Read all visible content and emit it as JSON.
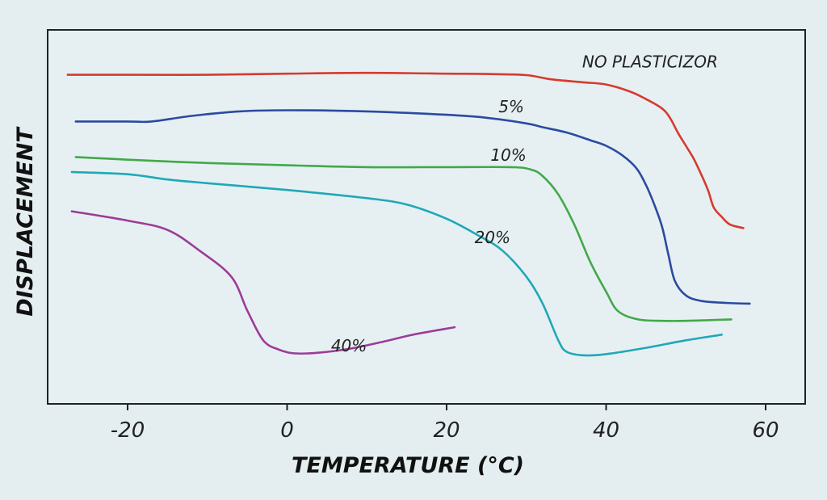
{
  "chart_data": {
    "type": "line",
    "title": "",
    "xlabel": "TEMPERATURE (°C)",
    "ylabel": "DISPLACEMENT",
    "xlim": [
      -30,
      65
    ],
    "ylim": [
      0,
      100
    ],
    "xticks": [
      -20,
      0,
      20,
      40,
      60
    ],
    "xtick_labels": [
      "-20",
      "0",
      "20",
      "40",
      "60"
    ],
    "grid": false,
    "series": [
      {
        "name": "NO PLASTICIZOR",
        "label": "NO PLASTICIZOR",
        "color": "#d63a2f",
        "label_at": [
          37,
          90
        ],
        "points": [
          [
            -27.5,
            88
          ],
          [
            -20,
            88
          ],
          [
            -10,
            88
          ],
          [
            0,
            88.3
          ],
          [
            10,
            88.5
          ],
          [
            20,
            88.3
          ],
          [
            25,
            88.2
          ],
          [
            30,
            87.9
          ],
          [
            33,
            86.8
          ],
          [
            37,
            86
          ],
          [
            40,
            85.4
          ],
          [
            43,
            83.5
          ],
          [
            45,
            81.5
          ],
          [
            47,
            79
          ],
          [
            48,
            76.5
          ],
          [
            49,
            72.5
          ],
          [
            50,
            69
          ],
          [
            51,
            65.5
          ],
          [
            52,
            61
          ],
          [
            52.8,
            57
          ],
          [
            53.5,
            52.5
          ],
          [
            54.5,
            50
          ],
          [
            55.5,
            48
          ],
          [
            57.2,
            47
          ]
        ]
      },
      {
        "name": "5%",
        "label": "5%",
        "color": "#2b4aa2",
        "label_at": [
          26.5,
          78
        ],
        "points": [
          [
            -26.5,
            75.5
          ],
          [
            -20,
            75.5
          ],
          [
            -17,
            75.5
          ],
          [
            -12,
            77
          ],
          [
            -6,
            78.2
          ],
          [
            0,
            78.5
          ],
          [
            10,
            78.2
          ],
          [
            20,
            77.3
          ],
          [
            25,
            76.5
          ],
          [
            30,
            75
          ],
          [
            32,
            74
          ],
          [
            35,
            72.6
          ],
          [
            38,
            70.5
          ],
          [
            40,
            69
          ],
          [
            42,
            66.5
          ],
          [
            43.8,
            63
          ],
          [
            45,
            58.5
          ],
          [
            46,
            53.5
          ],
          [
            47,
            47.5
          ],
          [
            47.8,
            40
          ],
          [
            48.6,
            33
          ],
          [
            50,
            29
          ],
          [
            52,
            27.5
          ],
          [
            55,
            27
          ],
          [
            58,
            26.8
          ]
        ]
      },
      {
        "name": "10%",
        "label": "10%",
        "color": "#43a84a",
        "label_at": [
          25.5,
          65
        ],
        "points": [
          [
            -26.5,
            66
          ],
          [
            -20,
            65.3
          ],
          [
            -10,
            64.4
          ],
          [
            0,
            63.8
          ],
          [
            10,
            63.3
          ],
          [
            20,
            63.3
          ],
          [
            28,
            63.3
          ],
          [
            30.5,
            62.7
          ],
          [
            32,
            61
          ],
          [
            34,
            56
          ],
          [
            36,
            48
          ],
          [
            38,
            38
          ],
          [
            40,
            30
          ],
          [
            41.5,
            24.8
          ],
          [
            44,
            22.6
          ],
          [
            47,
            22.2
          ],
          [
            50,
            22.2
          ],
          [
            53,
            22.4
          ],
          [
            55.7,
            22.6
          ]
        ]
      },
      {
        "name": "20%",
        "label": "20%",
        "color": "#1fa8b8",
        "label_at": [
          23.5,
          43
        ],
        "points": [
          [
            -27,
            62
          ],
          [
            -20,
            61.4
          ],
          [
            -15,
            60
          ],
          [
            -10,
            59
          ],
          [
            0,
            57.2
          ],
          [
            10,
            55
          ],
          [
            15,
            53.3
          ],
          [
            20,
            49.5
          ],
          [
            24,
            45
          ],
          [
            27,
            41
          ],
          [
            30,
            34
          ],
          [
            32,
            27
          ],
          [
            34,
            17
          ],
          [
            35,
            14
          ],
          [
            37,
            13
          ],
          [
            40,
            13.3
          ],
          [
            45,
            15
          ],
          [
            50,
            17
          ],
          [
            54.5,
            18.5
          ]
        ]
      },
      {
        "name": "40%",
        "label": "40%",
        "color": "#9c3c98",
        "label_at": [
          5.5,
          14
        ],
        "points": [
          [
            -27,
            51.5
          ],
          [
            -20,
            49
          ],
          [
            -15,
            46.5
          ],
          [
            -11,
            41
          ],
          [
            -7,
            34
          ],
          [
            -5,
            25
          ],
          [
            -3,
            17
          ],
          [
            -1,
            14.5
          ],
          [
            1,
            13.5
          ],
          [
            4,
            13.7
          ],
          [
            8,
            14.8
          ],
          [
            12,
            16.6
          ],
          [
            16,
            18.6
          ],
          [
            21,
            20.5
          ]
        ]
      }
    ]
  }
}
